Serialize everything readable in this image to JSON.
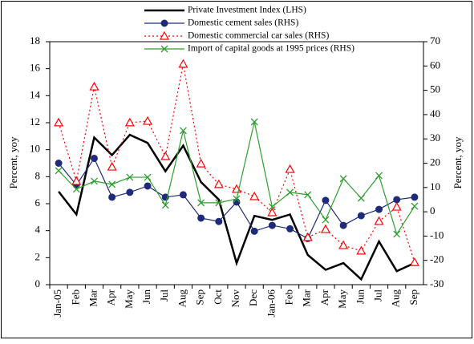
{
  "chart_data": {
    "type": "line",
    "categories": [
      "Jan-05",
      "Feb",
      "Mar",
      "Apr",
      "May",
      "Jun",
      "Jul",
      "Aug",
      "Sep",
      "Oct",
      "Nov",
      "Dec",
      "Jan-06",
      "Feb",
      "Mar",
      "Apr",
      "May",
      "Jun",
      "Jul",
      "Aug",
      "Sep"
    ],
    "y_label": "Percent, yoy",
    "y2_label": "Percent, yoy",
    "ylim": [
      0,
      18
    ],
    "yticks": [
      0,
      2,
      4,
      6,
      8,
      10,
      12,
      14,
      16,
      18
    ],
    "y2lim": [
      -30,
      70
    ],
    "y2ticks": [
      -30,
      -20,
      -10,
      0,
      10,
      20,
      30,
      40,
      50,
      60,
      70
    ],
    "series": [
      {
        "name": "Private Investment Index (LHS)",
        "color": "#000000",
        "marker": "none",
        "line_style": "solid",
        "axis": "y",
        "values": [
          6.9,
          5.2,
          10.9,
          9.6,
          11.1,
          10.5,
          8.4,
          10.3,
          7.6,
          6.3,
          1.6,
          5.1,
          4.8,
          5.2,
          2.2,
          1.1,
          1.6,
          0.4,
          3.2,
          1.0,
          1.6
        ]
      },
      {
        "name": "Domestic cement sales (RHS)",
        "color": "#1f2a7a",
        "marker": "circle",
        "line_style": "solid",
        "axis": "y2",
        "values": [
          20,
          11,
          22,
          6,
          8,
          10.6,
          6,
          7,
          -2.6,
          -4,
          4,
          -8,
          -5.6,
          -7,
          -11,
          4.7,
          -5.6,
          -1.6,
          1,
          5,
          6
        ]
      },
      {
        "name": "Domestic commercial car sales (RHS)",
        "color": "#ff0000",
        "marker": "triangle",
        "line_style": "dotted",
        "axis": "y2",
        "values": [
          36.7,
          12.6,
          51.5,
          18.5,
          36.7,
          37.3,
          22.8,
          60.8,
          19.8,
          11.3,
          9.3,
          6.3,
          -0.3,
          17.5,
          -10.5,
          -7.2,
          -13.8,
          -16.1,
          -3.9,
          2,
          -20.8
        ]
      },
      {
        "name": "Import of capital goods at 1995 prices (RHS)",
        "color": "#2e9e2e",
        "marker": "x",
        "line_style": "solid",
        "axis": "y2",
        "values": [
          16.9,
          9.3,
          12.6,
          11.3,
          14.2,
          14.2,
          2.7,
          33.4,
          3.7,
          3.7,
          5.3,
          37,
          2,
          8,
          7,
          -3.3,
          13.6,
          5.6,
          14.9,
          -9.2,
          2.3
        ]
      }
    ]
  }
}
